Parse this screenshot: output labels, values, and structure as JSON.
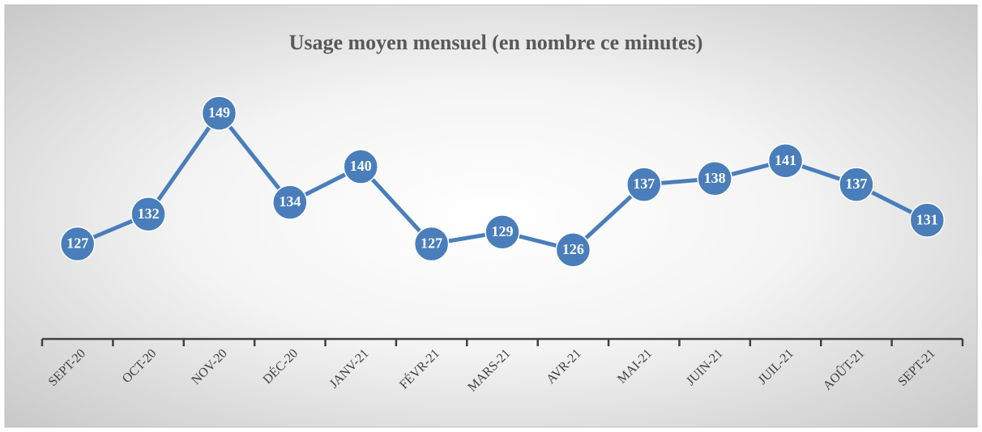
{
  "chart_data": {
    "type": "line",
    "title": "Usage moyen mensuel (en nombre ce minutes)",
    "categories": [
      "SEPT-20",
      "OCT-20",
      "NOV-20",
      "DÉC-20",
      "JANV-21",
      "FÉVR-21",
      "MARS-21",
      "AVR-21",
      "MAI-21",
      "JUIN-21",
      "JUIL-21",
      "AOÛT-21",
      "SEPT-21"
    ],
    "values": [
      127,
      132,
      149,
      134,
      140,
      127,
      129,
      126,
      137,
      138,
      141,
      137,
      131
    ],
    "color": "#4a7ebb",
    "ylim": [
      111,
      150
    ]
  }
}
